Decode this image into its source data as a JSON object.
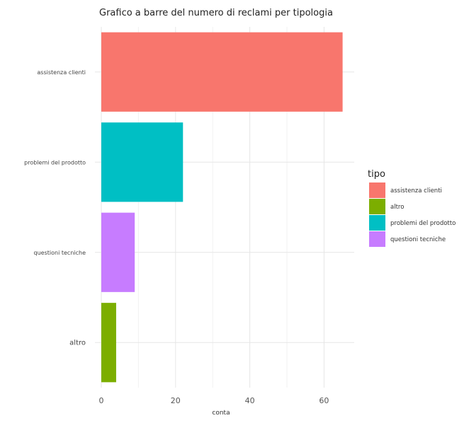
{
  "chart_data": {
    "type": "bar",
    "orientation": "horizontal",
    "title": "Grafico a barre del numero di reclami per tipologia",
    "xlabel": "conta",
    "ylabel": "",
    "categories": [
      "assistenza clienti",
      "problemi del prodotto",
      "questioni tecniche",
      "altro"
    ],
    "values": [
      65,
      22,
      9,
      4
    ],
    "colors": [
      "#F8766D",
      "#00BFC4",
      "#C77CFF",
      "#7CAE00"
    ],
    "xlim": [
      0,
      68
    ],
    "xticks": [
      0,
      20,
      40,
      60
    ],
    "grid": true,
    "legend": {
      "title": "tipo",
      "placement": "right",
      "entries": [
        {
          "label": "assistenza clienti",
          "color": "#F8766D"
        },
        {
          "label": "altro",
          "color": "#7CAE00"
        },
        {
          "label": "problemi del prodotto",
          "color": "#00BFC4"
        },
        {
          "label": "questioni tecniche",
          "color": "#C77CFF"
        }
      ]
    }
  }
}
